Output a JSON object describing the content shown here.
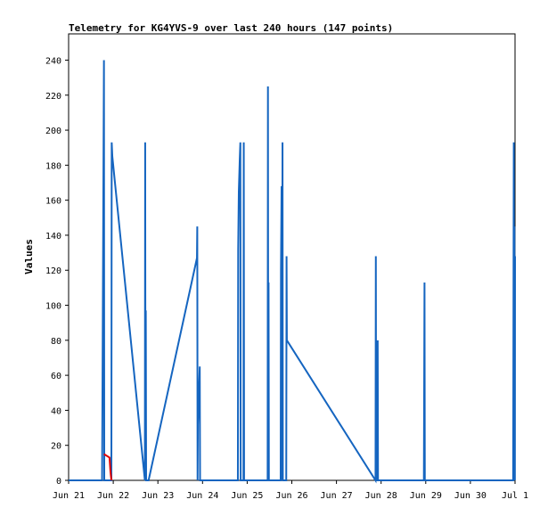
{
  "chart_data": {
    "type": "line",
    "title": "Telemetry for KG4YVS-9 over last 240 hours (147 points)",
    "xlabel": "",
    "ylabel": "Values",
    "x_unit": "date",
    "xlim": [
      "Jun 21 00:00",
      "Jul 1 00:00"
    ],
    "ylim": [
      0,
      255
    ],
    "x_ticks": [
      "Jun 21",
      "Jun 22",
      "Jun 23",
      "Jun 24",
      "Jun 25",
      "Jun 26",
      "Jun 27",
      "Jun 28",
      "Jun 29",
      "Jun 30",
      "Jul 1"
    ],
    "y_ticks": [
      0,
      20,
      40,
      60,
      80,
      100,
      120,
      140,
      160,
      180,
      200,
      220,
      240
    ],
    "grid": false,
    "legend": "none",
    "colors": {
      "blue_series": "#1565c0",
      "red_series": "#e00000"
    },
    "series": [
      {
        "color": "#1565c0",
        "points": [
          [
            "Jun 21 00:00",
            0
          ],
          [
            "Jun 21 18:00",
            0
          ],
          [
            "Jun 21 19:00",
            240
          ],
          [
            "Jun 21 19:10",
            0
          ],
          [
            "Jun 21 23:00",
            0
          ],
          [
            "Jun 21 23:10",
            193
          ],
          [
            "Jun 21 23:30",
            185
          ],
          [
            "Jun 22 17:00",
            0
          ],
          [
            "Jun 22 17:10",
            193
          ],
          [
            "Jun 22 17:20",
            0
          ],
          [
            "Jun 22 17:30",
            97
          ],
          [
            "Jun 22 17:40",
            0
          ],
          [
            "Jun 22 19:00",
            0
          ],
          [
            "Jun 23 21:00",
            127
          ],
          [
            "Jun 23 21:10",
            145
          ],
          [
            "Jun 23 21:20",
            0
          ],
          [
            "Jun 23 21:30",
            32
          ],
          [
            "Jun 23 22:30",
            65
          ],
          [
            "Jun 23 22:40",
            0
          ],
          [
            "Jun 24 14:00",
            0
          ],
          [
            "Jun 24 14:10",
            0
          ],
          [
            "Jun 24 19:00",
            0
          ],
          [
            "Jun 24 19:10",
            132
          ],
          [
            "Jun 24 19:30",
            165
          ],
          [
            "Jun 24 20:00",
            183
          ],
          [
            "Jun 24 20:20",
            193
          ],
          [
            "Jun 24 20:30",
            0
          ],
          [
            "Jun 24 22:00",
            0
          ],
          [
            "Jun 24 22:10",
            193
          ],
          [
            "Jun 24 22:20",
            0
          ],
          [
            "Jun 25 11:00",
            0
          ],
          [
            "Jun 25 11:10",
            225
          ],
          [
            "Jun 25 11:20",
            0
          ],
          [
            "Jun 25 11:30",
            113
          ],
          [
            "Jun 25 11:40",
            0
          ],
          [
            "Jun 25 18:00",
            0
          ],
          [
            "Jun 25 18:10",
            120
          ],
          [
            "Jun 25 18:30",
            168
          ],
          [
            "Jun 25 18:40",
            0
          ],
          [
            "Jun 25 19:00",
            193
          ],
          [
            "Jun 25 19:10",
            0
          ],
          [
            "Jun 25 21:00",
            0
          ],
          [
            "Jun 25 21:10",
            128
          ],
          [
            "Jun 25 21:20",
            80
          ],
          [
            "Jun 27 21:00",
            0
          ],
          [
            "Jun 27 21:10",
            128
          ],
          [
            "Jun 27 21:20",
            0
          ],
          [
            "Jun 27 22:00",
            0
          ],
          [
            "Jun 27 22:10",
            80
          ],
          [
            "Jun 27 22:20",
            0
          ],
          [
            "Jun 28 23:00",
            0
          ],
          [
            "Jun 28 23:10",
            57
          ],
          [
            "Jun 28 23:20",
            113
          ],
          [
            "Jun 28 23:30",
            0
          ],
          [
            "Jun 30 23:00",
            0
          ],
          [
            "Jun 30 23:10",
            97
          ],
          [
            "Jun 30 23:20",
            193
          ],
          [
            "Jun 30 23:30",
            0
          ],
          [
            "Jun 30 23:40",
            145
          ],
          [
            "Jun 30 23:50",
            65
          ],
          [
            "Jun 30 23:55",
            0
          ],
          [
            "Jul 1 00:00",
            128
          ]
        ]
      },
      {
        "color": "#e00000",
        "points": [
          [
            "Jun 21 19:00",
            15
          ],
          [
            "Jun 21 22:00",
            13
          ],
          [
            "Jun 21 22:30",
            5
          ],
          [
            "Jun 21 23:00",
            0
          ]
        ]
      }
    ]
  }
}
